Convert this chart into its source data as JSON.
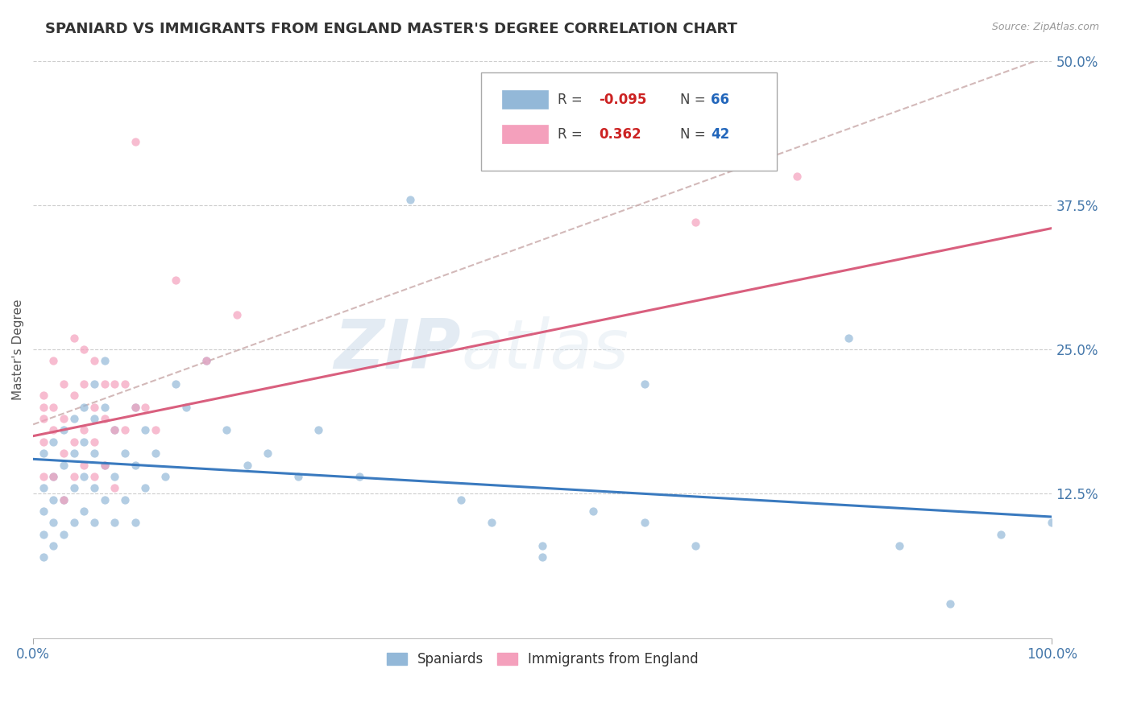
{
  "title": "SPANIARD VS IMMIGRANTS FROM ENGLAND MASTER'S DEGREE CORRELATION CHART",
  "source_text": "Source: ZipAtlas.com",
  "ylabel": "Master's Degree",
  "xlim": [
    0,
    1.0
  ],
  "ylim": [
    0,
    0.5
  ],
  "yticks": [
    0.125,
    0.25,
    0.375,
    0.5
  ],
  "ytick_labels": [
    "12.5%",
    "25.0%",
    "37.5%",
    "50.0%"
  ],
  "blue_color": "#93b8d8",
  "pink_color": "#f4a0bc",
  "trend_blue_color": "#3a7abf",
  "trend_pink_color": "#d95f7e",
  "trend_dashed_color": "#c8a8a8",
  "watermark_zip": "ZIP",
  "watermark_atlas": "atlas",
  "blue_trend_y0": 0.155,
  "blue_trend_y1": 0.105,
  "pink_trend_y0": 0.175,
  "pink_trend_y1": 0.355,
  "dash_trend_y0": 0.185,
  "dash_trend_y1": 0.505,
  "blue_scatter_x": [
    0.01,
    0.01,
    0.01,
    0.01,
    0.01,
    0.02,
    0.02,
    0.02,
    0.02,
    0.02,
    0.03,
    0.03,
    0.03,
    0.03,
    0.04,
    0.04,
    0.04,
    0.04,
    0.05,
    0.05,
    0.05,
    0.05,
    0.06,
    0.06,
    0.06,
    0.06,
    0.06,
    0.07,
    0.07,
    0.07,
    0.07,
    0.08,
    0.08,
    0.08,
    0.09,
    0.09,
    0.1,
    0.1,
    0.1,
    0.11,
    0.11,
    0.12,
    0.13,
    0.14,
    0.15,
    0.17,
    0.19,
    0.21,
    0.23,
    0.26,
    0.28,
    0.32,
    0.37,
    0.42,
    0.45,
    0.5,
    0.5,
    0.55,
    0.6,
    0.6,
    0.65,
    0.8,
    0.85,
    0.9,
    0.95,
    1.0
  ],
  "blue_scatter_y": [
    0.16,
    0.13,
    0.11,
    0.09,
    0.07,
    0.17,
    0.14,
    0.12,
    0.1,
    0.08,
    0.18,
    0.15,
    0.12,
    0.09,
    0.19,
    0.16,
    0.13,
    0.1,
    0.2,
    0.17,
    0.14,
    0.11,
    0.22,
    0.19,
    0.16,
    0.13,
    0.1,
    0.24,
    0.2,
    0.15,
    0.12,
    0.18,
    0.14,
    0.1,
    0.16,
    0.12,
    0.2,
    0.15,
    0.1,
    0.18,
    0.13,
    0.16,
    0.14,
    0.22,
    0.2,
    0.24,
    0.18,
    0.15,
    0.16,
    0.14,
    0.18,
    0.14,
    0.38,
    0.12,
    0.1,
    0.08,
    0.07,
    0.11,
    0.22,
    0.1,
    0.08,
    0.26,
    0.08,
    0.03,
    0.09,
    0.1
  ],
  "pink_scatter_x": [
    0.01,
    0.01,
    0.01,
    0.01,
    0.01,
    0.02,
    0.02,
    0.02,
    0.02,
    0.03,
    0.03,
    0.03,
    0.03,
    0.04,
    0.04,
    0.04,
    0.04,
    0.05,
    0.05,
    0.05,
    0.05,
    0.06,
    0.06,
    0.06,
    0.06,
    0.07,
    0.07,
    0.07,
    0.08,
    0.08,
    0.08,
    0.09,
    0.09,
    0.1,
    0.1,
    0.11,
    0.12,
    0.14,
    0.17,
    0.2,
    0.65,
    0.75
  ],
  "pink_scatter_y": [
    0.21,
    0.19,
    0.17,
    0.14,
    0.2,
    0.24,
    0.2,
    0.18,
    0.14,
    0.22,
    0.19,
    0.16,
    0.12,
    0.26,
    0.21,
    0.17,
    0.14,
    0.25,
    0.22,
    0.18,
    0.15,
    0.24,
    0.2,
    0.17,
    0.14,
    0.22,
    0.19,
    0.15,
    0.22,
    0.18,
    0.13,
    0.22,
    0.18,
    0.43,
    0.2,
    0.2,
    0.18,
    0.31,
    0.24,
    0.28,
    0.36,
    0.4
  ]
}
